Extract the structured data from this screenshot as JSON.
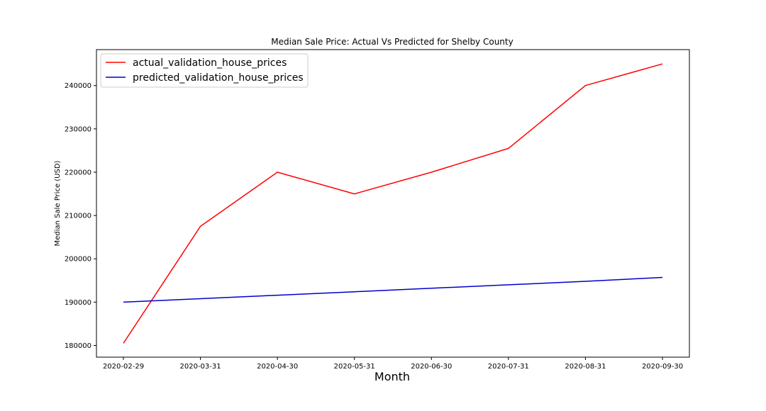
{
  "chart_data": {
    "type": "line",
    "title": "Median Sale Price: Actual Vs Predicted for Shelby County",
    "xlabel": "Month",
    "ylabel": "Median Sale Price (USD)",
    "categories": [
      "2020-02-29",
      "2020-03-31",
      "2020-04-30",
      "2020-05-31",
      "2020-06-30",
      "2020-07-31",
      "2020-08-31",
      "2020-09-30"
    ],
    "yticks": [
      180000,
      190000,
      200000,
      210000,
      220000,
      230000,
      240000
    ],
    "ylim": [
      177300,
      248300
    ],
    "grid": false,
    "legend_position": "top-left",
    "series": [
      {
        "name": "actual_validation_house_prices",
        "color": "#ff0000",
        "values": [
          180500,
          207500,
          220000,
          215000,
          220000,
          225500,
          240000,
          245000
        ]
      },
      {
        "name": "predicted_validation_house_prices",
        "color": "#0000cc",
        "values": [
          190000,
          190800,
          191600,
          192400,
          193200,
          194000,
          194800,
          195700
        ]
      }
    ]
  }
}
